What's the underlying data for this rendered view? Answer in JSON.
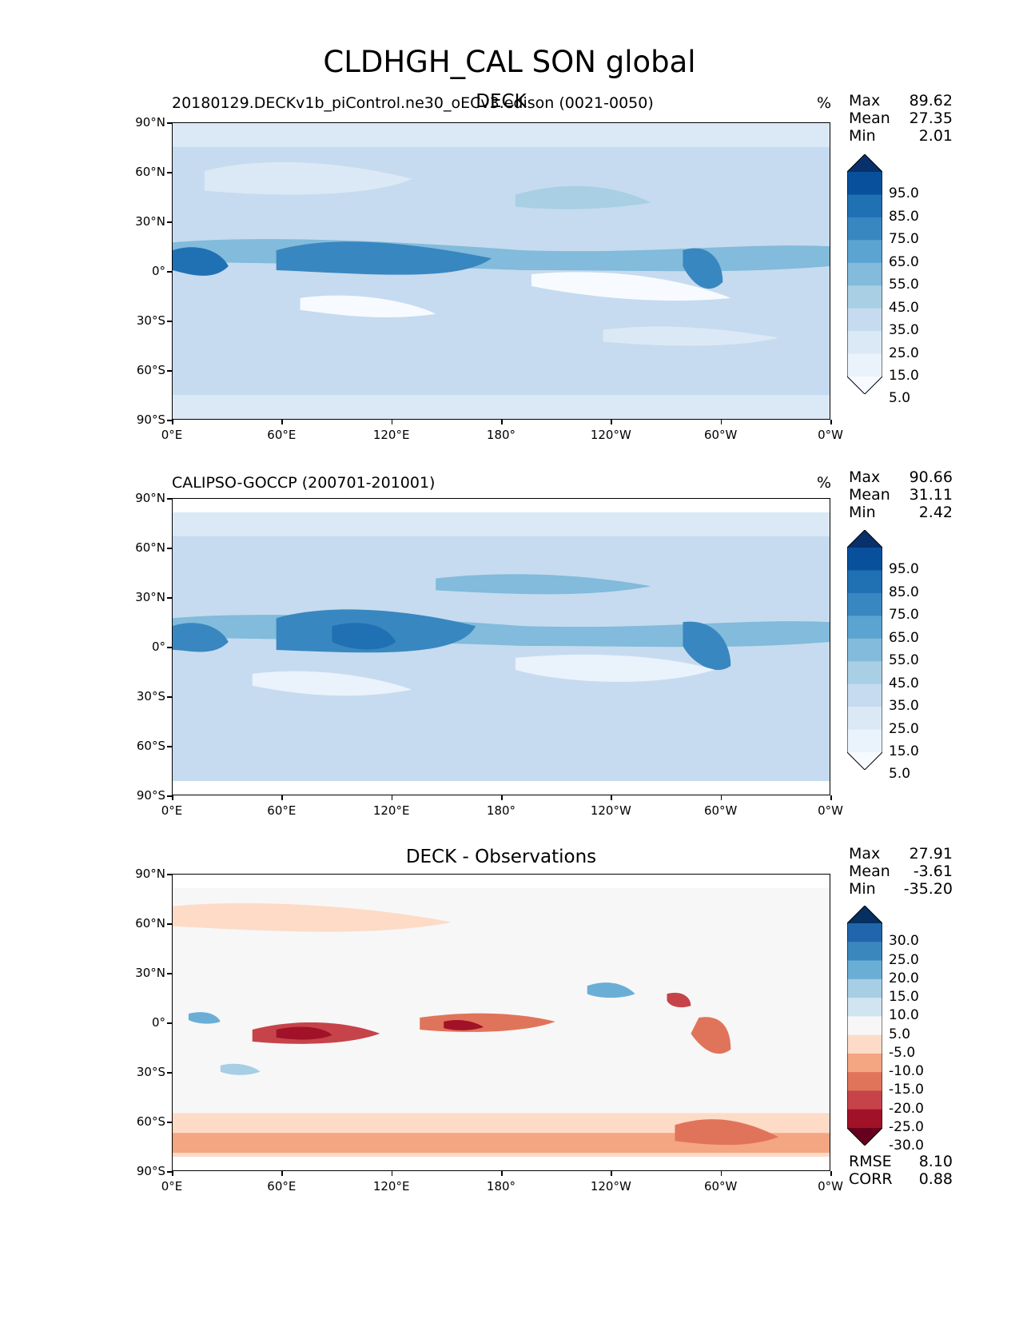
{
  "figure": {
    "title": "CLDHGH_CAL SON global"
  },
  "axes": {
    "lat_ticks": [
      "90°N",
      "60°N",
      "30°N",
      "0°",
      "30°S",
      "60°S",
      "90°S"
    ],
    "lon_ticks": [
      "0°E",
      "60°E",
      "120°E",
      "180°",
      "120°W",
      "60°W",
      "0°W"
    ]
  },
  "panels": [
    {
      "id": "test",
      "left_title": "20180129.DECKv1b_piControl.ne30_oECv3.edison (0021-0050)",
      "center_title": "DECK",
      "units": "%",
      "stats": [
        {
          "label": "Max",
          "value": "89.62"
        },
        {
          "label": "Mean",
          "value": "27.35"
        },
        {
          "label": "Min",
          "value": "2.01"
        }
      ],
      "colorbar": [
        "95.0",
        "85.0",
        "75.0",
        "65.0",
        "55.0",
        "45.0",
        "35.0",
        "25.0",
        "15.0",
        "5.0"
      ],
      "colorbar_colors": [
        "#08306b",
        "#08509b",
        "#2070b4",
        "#3987c0",
        "#5ba3d0",
        "#82bbdb",
        "#a9cfe5",
        "#c6dbef",
        "#dbe9f6",
        "#eaf2fb",
        "#f7fbff"
      ]
    },
    {
      "id": "reference",
      "left_title": "CALIPSO-GOCCP (200701-201001)",
      "center_title": "",
      "units": "%",
      "stats": [
        {
          "label": "Max",
          "value": "90.66"
        },
        {
          "label": "Mean",
          "value": "31.11"
        },
        {
          "label": "Min",
          "value": "2.42"
        }
      ],
      "colorbar": [
        "95.0",
        "85.0",
        "75.0",
        "65.0",
        "55.0",
        "45.0",
        "35.0",
        "25.0",
        "15.0",
        "5.0"
      ],
      "colorbar_colors": [
        "#08306b",
        "#08509b",
        "#2070b4",
        "#3987c0",
        "#5ba3d0",
        "#82bbdb",
        "#a9cfe5",
        "#c6dbef",
        "#dbe9f6",
        "#eaf2fb",
        "#f7fbff"
      ]
    },
    {
      "id": "difference",
      "left_title": "",
      "center_title": "DECK - Observations",
      "units": "",
      "stats": [
        {
          "label": "Max",
          "value": "27.91"
        },
        {
          "label": "Mean",
          "value": "-3.61"
        },
        {
          "label": "Min",
          "value": "-35.20"
        }
      ],
      "colorbar": [
        "30.0",
        "25.0",
        "20.0",
        "15.0",
        "10.0",
        "5.0",
        "-5.0",
        "-10.0",
        "-15.0",
        "-20.0",
        "-25.0",
        "-30.0"
      ],
      "colorbar_colors": [
        "#053061",
        "#2166ac",
        "#3a87bd",
        "#6aaed6",
        "#a6cee4",
        "#d1e5f0",
        "#f7f7f7",
        "#fddbc7",
        "#f4a582",
        "#e0745a",
        "#c6434a",
        "#a11228",
        "#67001f"
      ],
      "metrics": [
        {
          "label": "RMSE",
          "value": "8.10"
        },
        {
          "label": "CORR",
          "value": "0.88"
        }
      ]
    }
  ]
}
